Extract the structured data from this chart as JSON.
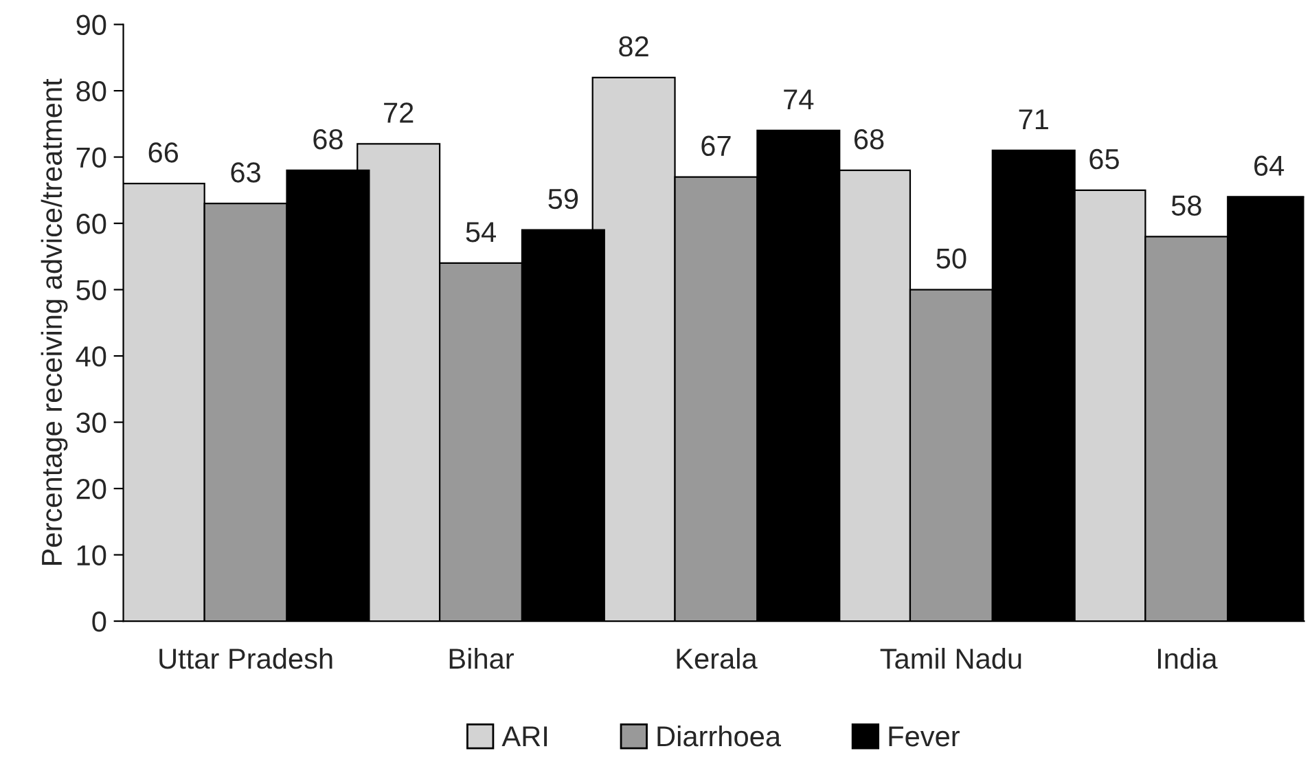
{
  "chart_data": {
    "type": "bar",
    "ylabel": "Percentage receiving advice/treatment",
    "categories": [
      "Uttar Pradesh",
      "Bihar",
      "Kerala",
      "Tamil Nadu",
      "India"
    ],
    "series": [
      {
        "name": "ARI",
        "color": "#d3d3d3",
        "values": [
          66,
          72,
          82,
          68,
          65
        ]
      },
      {
        "name": "Diarrhoea",
        "color": "#999999",
        "values": [
          63,
          54,
          67,
          50,
          58
        ]
      },
      {
        "name": "Fever",
        "color": "#000000",
        "values": [
          68,
          59,
          74,
          71,
          64
        ]
      }
    ],
    "ylim": [
      0,
      90
    ],
    "yticks": [
      0,
      10,
      20,
      30,
      40,
      50,
      60,
      70,
      80,
      90
    ],
    "data_labels": true,
    "legend": "bottom",
    "grid": false
  }
}
